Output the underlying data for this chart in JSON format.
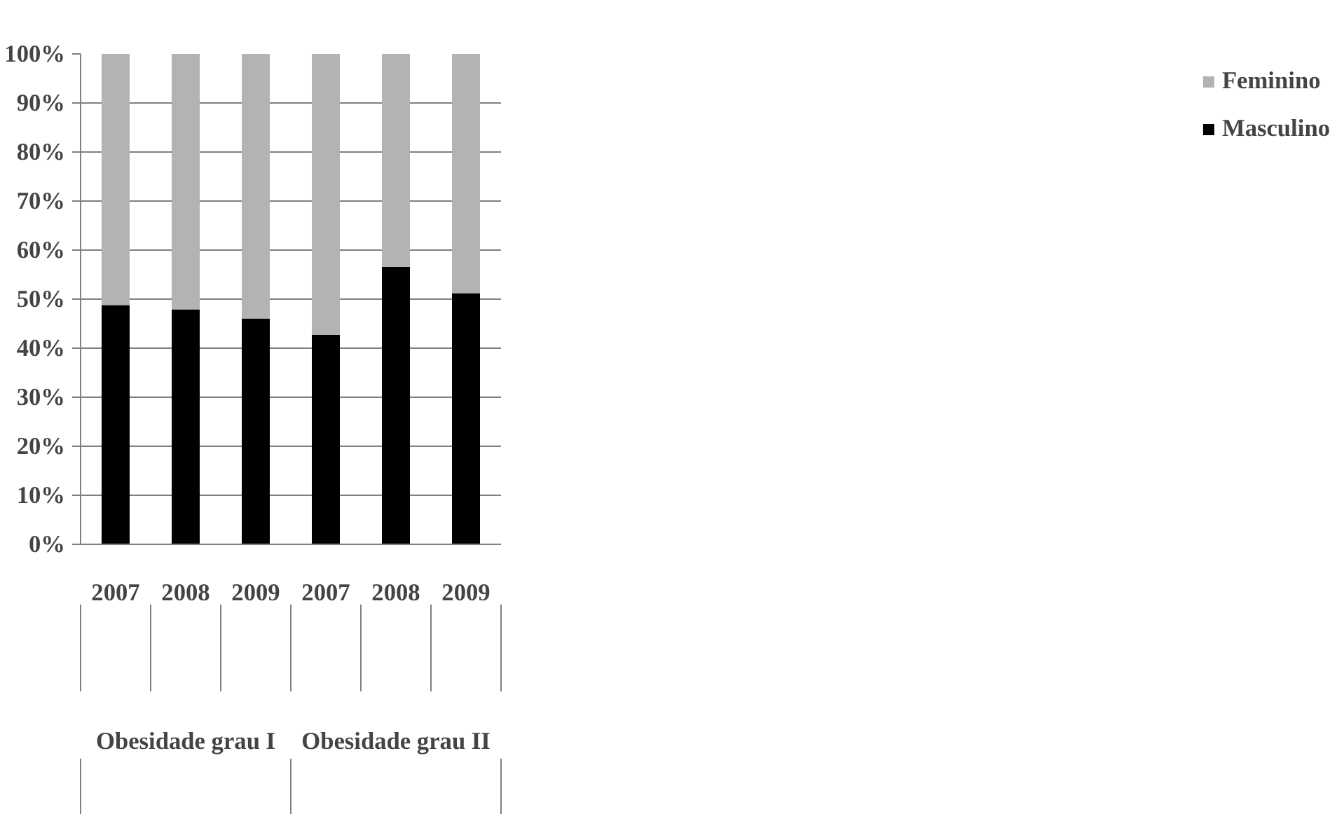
{
  "chart_data": {
    "type": "bar",
    "stacked": true,
    "categories": [
      "2007",
      "2008",
      "2009",
      "2007",
      "2008",
      "2009"
    ],
    "series": [
      {
        "name": "Masculino",
        "color": "#000000",
        "values": [
          48.8,
          47.9,
          46.0,
          42.7,
          56.6,
          51.2
        ]
      },
      {
        "name": "Feminino",
        "color": "#b3b3b3",
        "values": [
          51.2,
          52.1,
          54.0,
          57.3,
          43.4,
          48.8
        ]
      }
    ],
    "annotations": [
      "Obesidade grau I",
      "Obesidade grau II"
    ],
    "ylim": [
      0,
      100
    ],
    "yticks": [
      {
        "value": 0,
        "label": "0%"
      },
      {
        "value": 10,
        "label": "10%"
      },
      {
        "value": 20,
        "label": "20%"
      },
      {
        "value": 30,
        "label": "30%"
      },
      {
        "value": 40,
        "label": "40%"
      },
      {
        "value": 50,
        "label": "50%"
      },
      {
        "value": 60,
        "label": "60%"
      },
      {
        "value": 70,
        "label": "70%"
      },
      {
        "value": 80,
        "label": "80%"
      },
      {
        "value": 90,
        "label": "90%"
      },
      {
        "value": 100,
        "label": "100%"
      }
    ],
    "grid": "y",
    "legend": "right"
  }
}
